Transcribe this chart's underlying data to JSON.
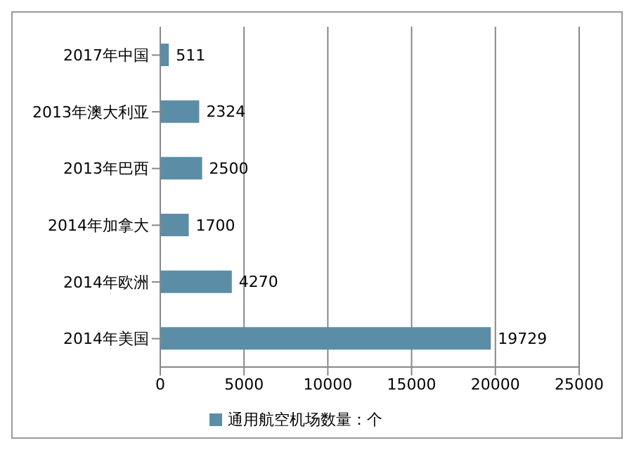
{
  "chart_data": {
    "type": "bar",
    "orientation": "horizontal",
    "categories": [
      "2017年中国",
      "2013年澳大利亚",
      "2013年巴西",
      "2014年加拿大",
      "2014年欧洲",
      "2014年美国"
    ],
    "series": [
      {
        "name": "通用航空机场数量：个",
        "color": "#5b8ea6",
        "values": [
          511,
          2324,
          2500,
          1700,
          4270,
          19729
        ]
      }
    ],
    "xlim": [
      0,
      25000
    ],
    "xticks": [
      0,
      5000,
      10000,
      15000,
      20000,
      25000
    ],
    "grid": "x",
    "legend": "bottom",
    "data_labels": true
  }
}
